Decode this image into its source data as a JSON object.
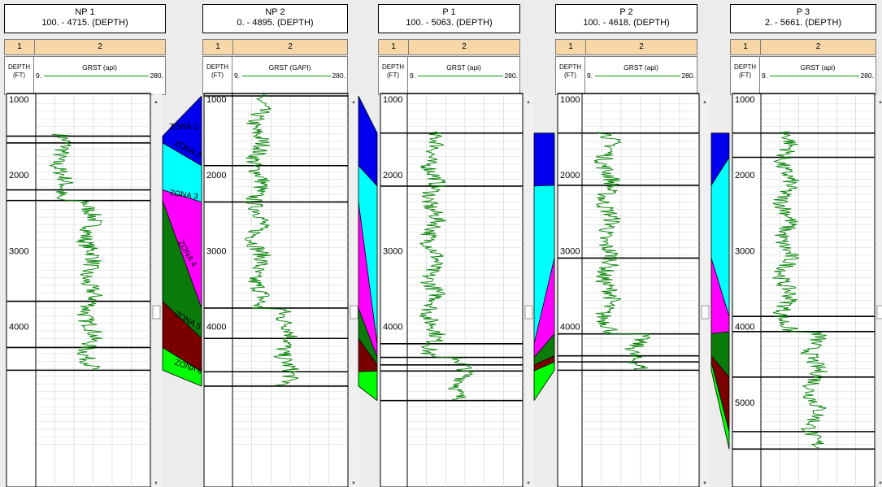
{
  "wells": [
    {
      "name": "NP 1",
      "range": "100. - 4715. (DEPTH)",
      "col1": "1",
      "col2": "2",
      "depth_label": [
        "DEPTH",
        "(FT)"
      ],
      "curve_name": "GRST (api)",
      "curve_min": "9.",
      "curve_max": "280.",
      "depth_ticks": [
        "1000",
        "2000",
        "3000",
        "4000"
      ],
      "zones": [
        1530,
        1620,
        2240,
        2380,
        3710,
        4320,
        4620
      ]
    },
    {
      "name": "NP 2",
      "range": "0. - 4895. (DEPTH)",
      "col1": "1",
      "col2": "2",
      "depth_label": [
        "DEPTH",
        "(FT)"
      ],
      "curve_name": "GRST (GAPI)",
      "curve_min": "9.",
      "curve_max": "280.",
      "depth_ticks": [
        "1000",
        "2000",
        "3000",
        "4000"
      ],
      "zones": [
        1000,
        1920,
        2400,
        3800,
        4200,
        4640,
        4830
      ]
    },
    {
      "name": "P 1",
      "range": "100. - 5063. (DEPTH)",
      "col1": "1",
      "col2": "2",
      "depth_label": [
        "DEPTH",
        "(FT)"
      ],
      "curve_name": "GRST (api)",
      "curve_min": "9.",
      "curve_max": "280.",
      "depth_ticks": [
        "1000",
        "2000",
        "3000",
        "4000"
      ],
      "zones": [
        1490,
        2190,
        4270,
        4450,
        4550,
        4630,
        5020
      ]
    },
    {
      "name": "P 2",
      "range": "100. - 4618. (DEPTH)",
      "col1": "1",
      "col2": "2",
      "depth_label": [
        "DEPTH",
        "(FT)"
      ],
      "curve_name": "GRST (api)",
      "curve_min": "9.",
      "curve_max": "280.",
      "depth_ticks": [
        "1000",
        "2000",
        "3000",
        "4000"
      ],
      "zones": [
        1490,
        2180,
        3140,
        4140,
        4430,
        4510,
        4620
      ]
    },
    {
      "name": "P 3",
      "range": "2. - 5661. (DEPTH)",
      "col1": "1",
      "col2": "2",
      "depth_label": [
        "DEPTH",
        "(FT)"
      ],
      "curve_name": "GRST (api)",
      "curve_min": "9.",
      "curve_max": "280.",
      "depth_ticks": [
        "1000",
        "2000",
        "3000",
        "4000",
        "5000"
      ],
      "zones": [
        1490,
        1810,
        3910,
        4110,
        4710,
        5430,
        5660
      ]
    }
  ],
  "zone_labels": [
    "ZONA 1",
    "ZONA 2",
    "ZONA 3",
    "ZONA 4",
    "ZONA 5",
    "ZONA 6"
  ],
  "zone_colors": [
    "#0000ee",
    "#00ffff",
    "#ff00ff",
    "#0a7a0a",
    "#7a0000",
    "#00ff00"
  ],
  "curve_color": "#008000"
}
